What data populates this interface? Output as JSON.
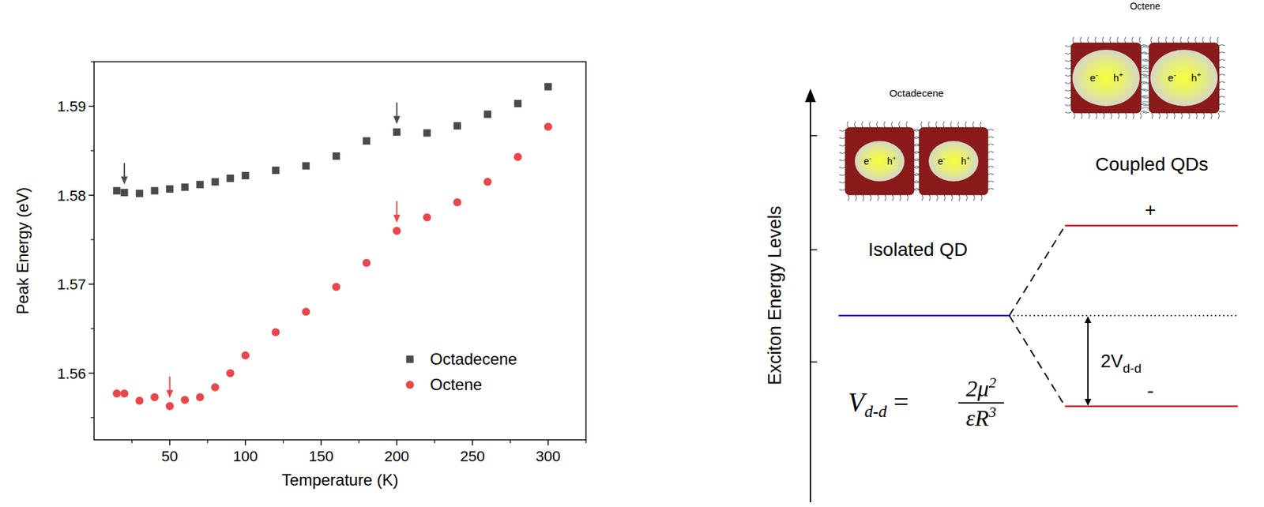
{
  "chart_data": {
    "type": "scatter",
    "x_label": "Temperature (K)",
    "y_label": "Peak Energy (eV)",
    "x": [
      15,
      20,
      30,
      40,
      50,
      60,
      70,
      80,
      90,
      100,
      120,
      140,
      160,
      180,
      200,
      220,
      240,
      260,
      280,
      300
    ],
    "series": [
      {
        "name": "Octadecene",
        "color": "#4a4a4a",
        "marker": "square",
        "values": [
          1.5805,
          1.5803,
          1.5802,
          1.5805,
          1.5807,
          1.5809,
          1.5812,
          1.5815,
          1.5819,
          1.5822,
          1.5828,
          1.5833,
          1.5844,
          1.5861,
          1.5871,
          1.587,
          1.5878,
          1.5891,
          1.5903,
          1.5922
        ]
      },
      {
        "name": "Octene",
        "color": "#e8474b",
        "marker": "circle",
        "values": [
          1.5577,
          1.5577,
          1.5569,
          1.5573,
          1.5563,
          1.557,
          1.5573,
          1.5584,
          1.56,
          1.562,
          1.5646,
          1.5669,
          1.5697,
          1.5724,
          1.576,
          1.5775,
          1.5792,
          1.5815,
          1.5843,
          1.5877
        ]
      }
    ],
    "xlim": [
      0,
      325
    ],
    "xticks": [
      50,
      100,
      150,
      200,
      250,
      300
    ],
    "ylim": [
      1.5525,
      1.595
    ],
    "yticks": [
      1.56,
      1.57,
      1.58,
      1.59
    ],
    "grid": false,
    "legend": "lower right",
    "annotations": [
      {
        "type": "arrow",
        "series": 0,
        "x": 20
      },
      {
        "type": "arrow",
        "series": 0,
        "x": 200
      },
      {
        "type": "arrow",
        "series": 1,
        "x": 50
      },
      {
        "type": "arrow",
        "series": 1,
        "x": 200
      }
    ]
  },
  "diagram": {
    "y_axis_label": "Exciton Energy Levels",
    "isolated": {
      "solvent": "Octadecene",
      "label": "Isolated QD"
    },
    "coupled": {
      "solvent": "Octene",
      "label": "Coupled QDs",
      "upper": "+",
      "lower": "-"
    },
    "carriers": {
      "electron": "e",
      "electron_charge": "-",
      "hole": "h",
      "hole_charge": "+"
    },
    "splitting": {
      "label": "2V",
      "label_sub": "d-d"
    },
    "formula": {
      "lhs": "V",
      "lhs_sub": "d-d",
      "equals": "=",
      "numerator": "2μ",
      "numerator_sup": "2",
      "denominator": "εR",
      "denominator_sup": "3"
    }
  }
}
